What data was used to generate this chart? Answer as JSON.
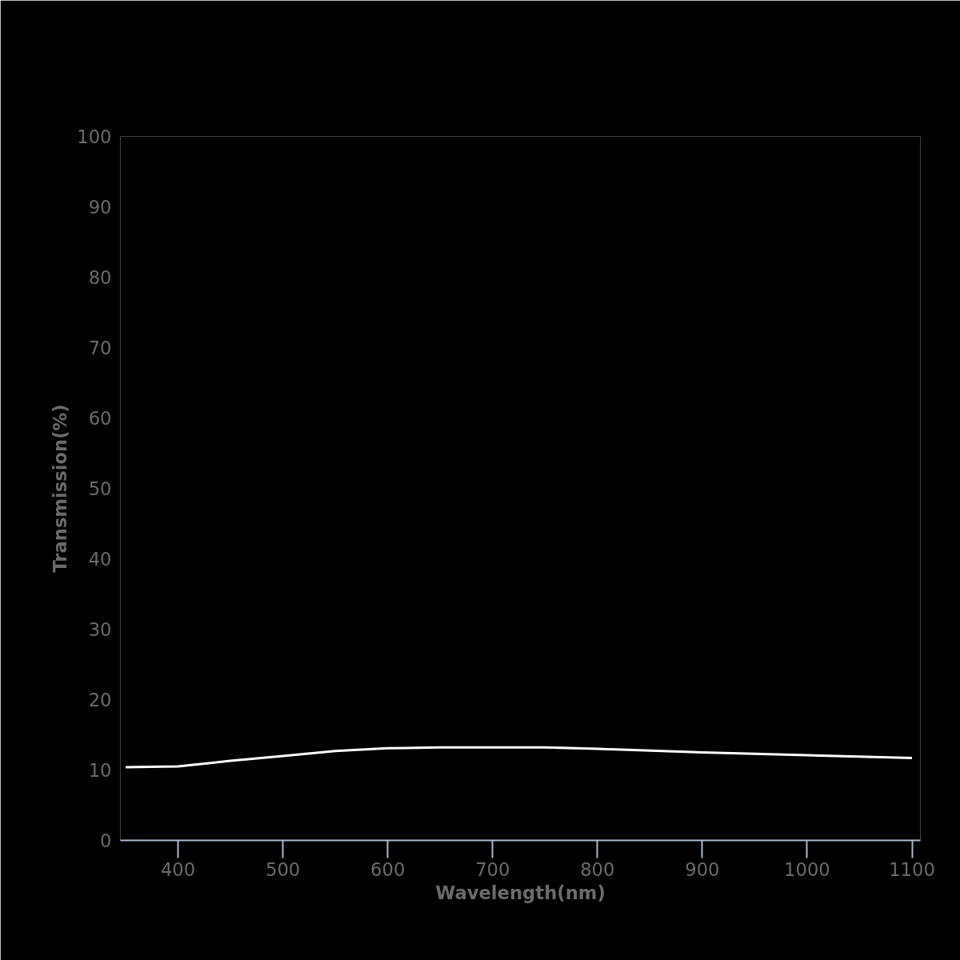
{
  "chart_data": {
    "type": "line",
    "xlabel": "Wavelength(nm)",
    "ylabel": "Transmission(%)",
    "x": [
      350,
      400,
      450,
      500,
      550,
      600,
      650,
      700,
      750,
      800,
      900,
      1000,
      1100
    ],
    "series": [
      {
        "color": "#ffffff",
        "values": [
          10.4,
          10.5,
          11.3,
          12.0,
          12.7,
          13.1,
          13.2,
          13.2,
          13.2,
          13.0,
          12.5,
          12.1,
          11.7
        ]
      }
    ],
    "xlim": [
      345,
      1108
    ],
    "ylim": [
      0,
      100
    ],
    "xticks": [
      400,
      500,
      600,
      700,
      800,
      900,
      1000,
      1100
    ],
    "yticks": [
      0,
      10,
      20,
      30,
      40,
      50,
      60,
      70,
      80,
      90,
      100
    ],
    "grid": false,
    "marker": "none",
    "line_style": "solid"
  }
}
